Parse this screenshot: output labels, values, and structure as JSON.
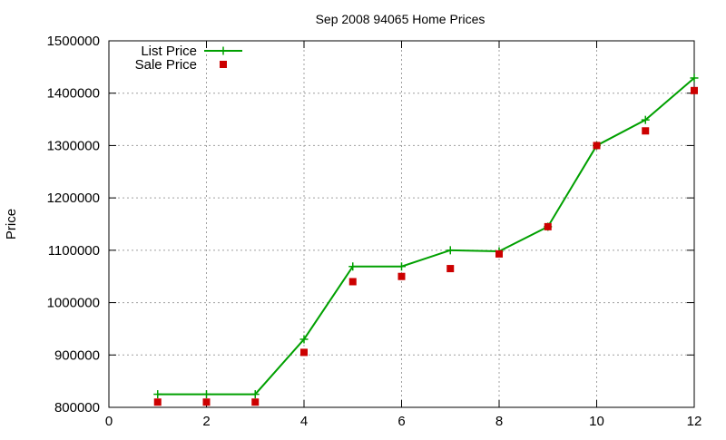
{
  "chart_data": {
    "type": "line",
    "title": "Sep 2008 94065 Home Prices",
    "xlabel": "",
    "ylabel": "Price",
    "xlim": [
      0,
      12
    ],
    "ylim": [
      800000,
      1500000
    ],
    "x_ticks": [
      0,
      2,
      4,
      6,
      8,
      10,
      12
    ],
    "y_ticks": [
      800000,
      900000,
      1000000,
      1100000,
      1200000,
      1300000,
      1400000,
      1500000
    ],
    "grid": true,
    "legend_position": "top-left",
    "series": [
      {
        "name": "List Price",
        "style": "line+cross",
        "color": "#00a000",
        "x": [
          1,
          2,
          3,
          4,
          5,
          6,
          7,
          8,
          9,
          10,
          11,
          12
        ],
        "values": [
          825000,
          825000,
          825000,
          930000,
          1069000,
          1069000,
          1100000,
          1098000,
          1145000,
          1300000,
          1349000,
          1429000
        ]
      },
      {
        "name": "Sale Price",
        "style": "square",
        "color": "#cc0000",
        "x": [
          1,
          2,
          3,
          4,
          5,
          6,
          7,
          8,
          9,
          10,
          11,
          12
        ],
        "values": [
          810000,
          810000,
          810000,
          905000,
          1040000,
          1050000,
          1065000,
          1093000,
          1145000,
          1300000,
          1328000,
          1405000
        ]
      }
    ]
  }
}
